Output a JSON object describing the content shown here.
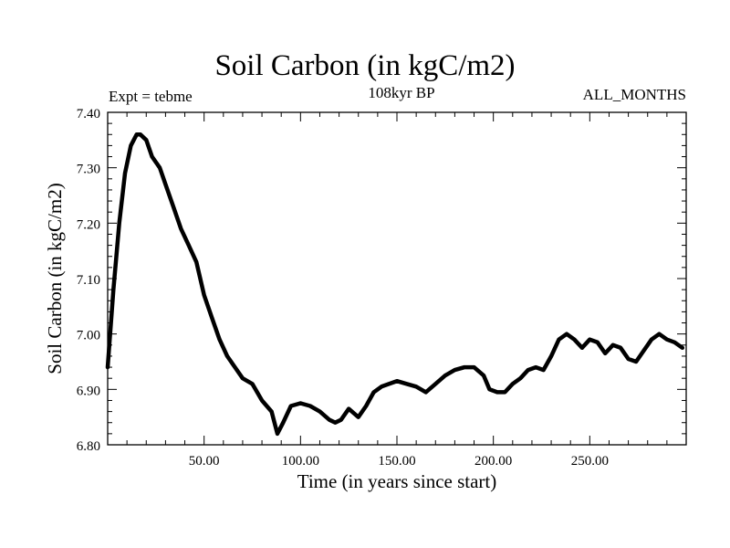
{
  "chart_data": {
    "type": "line",
    "title": "Soil Carbon (in kgC/m2)",
    "subtitle": "108kyr BP",
    "left_label": "Expt = tebme",
    "right_label": "ALL_MONTHS",
    "xlabel": "Time (in years since start)",
    "ylabel": "Soil Carbon (in kgC/m2)",
    "xlim": [
      0,
      300
    ],
    "ylim": [
      6.8,
      7.4
    ],
    "x_ticks": [
      50,
      100,
      150,
      200,
      250
    ],
    "x_tick_labels": [
      "50.00",
      "100.00",
      "150.00",
      "200.00",
      "250.00"
    ],
    "y_ticks": [
      6.8,
      6.9,
      7.0,
      7.1,
      7.2,
      7.3,
      7.4
    ],
    "y_tick_labels": [
      "6.80",
      "6.90",
      "7.00",
      "7.10",
      "7.20",
      "7.30",
      "7.40"
    ],
    "line_color": "#000000",
    "series": [
      {
        "name": "Soil Carbon",
        "x": [
          0,
          3,
          6,
          9,
          12,
          15,
          17,
          20,
          23,
          27,
          30,
          34,
          38,
          42,
          46,
          50,
          54,
          58,
          62,
          66,
          70,
          75,
          80,
          85,
          88,
          91,
          95,
          100,
          105,
          110,
          115,
          118,
          121,
          125,
          130,
          134,
          138,
          142,
          146,
          150,
          155,
          160,
          165,
          170,
          175,
          180,
          185,
          190,
          195,
          198,
          202,
          206,
          210,
          214,
          218,
          222,
          226,
          230,
          234,
          238,
          242,
          246,
          250,
          254,
          258,
          262,
          266,
          270,
          274,
          278,
          282,
          286,
          290,
          294,
          298
        ],
        "values": [
          6.94,
          7.08,
          7.2,
          7.29,
          7.34,
          7.36,
          7.36,
          7.35,
          7.32,
          7.3,
          7.27,
          7.23,
          7.19,
          7.16,
          7.13,
          7.07,
          7.03,
          6.99,
          6.96,
          6.94,
          6.92,
          6.91,
          6.88,
          6.86,
          6.82,
          6.84,
          6.87,
          6.875,
          6.87,
          6.86,
          6.845,
          6.84,
          6.845,
          6.865,
          6.85,
          6.87,
          6.895,
          6.905,
          6.91,
          6.915,
          6.91,
          6.905,
          6.895,
          6.91,
          6.925,
          6.935,
          6.94,
          6.94,
          6.925,
          6.9,
          6.895,
          6.895,
          6.91,
          6.92,
          6.935,
          6.94,
          6.935,
          6.96,
          6.99,
          7.0,
          6.99,
          6.975,
          6.99,
          6.985,
          6.965,
          6.98,
          6.975,
          6.955,
          6.95,
          6.97,
          6.99,
          7.0,
          6.99,
          6.985,
          6.975
        ]
      }
    ]
  }
}
